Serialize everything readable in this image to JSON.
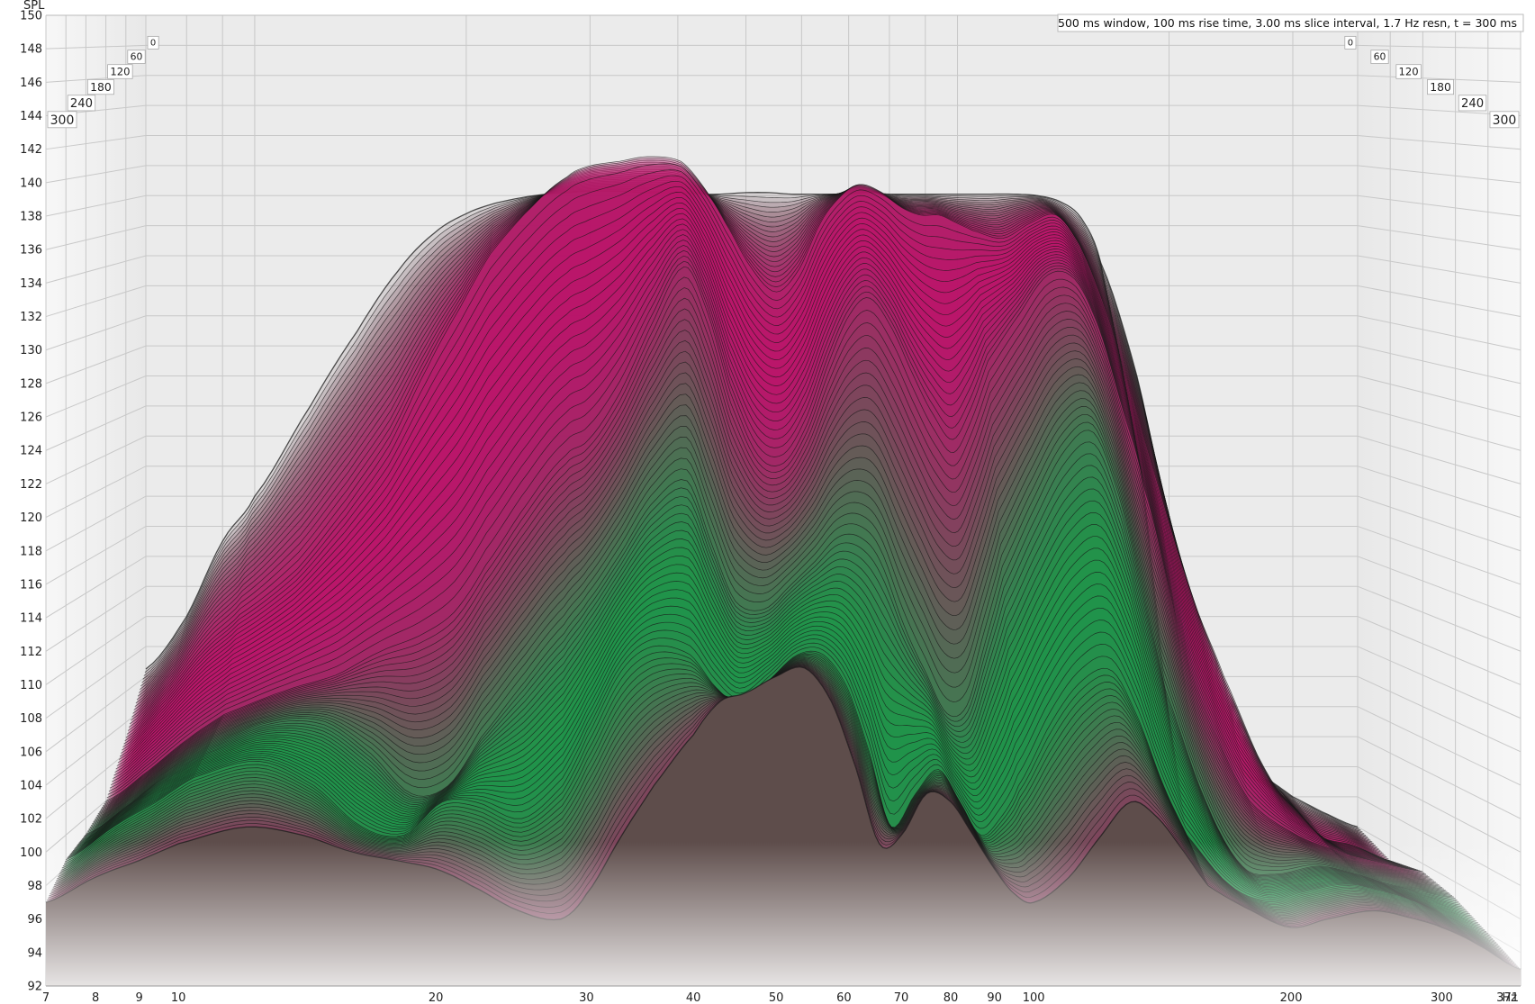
{
  "chart_data": {
    "type": "area",
    "subtype": "waterfall",
    "annotation": "500 ms window, 100 ms rise time, 3.00 ms slice interval, 1.7 Hz resn, t = 300 ms",
    "ylabel": "SPL",
    "xunit": "Hz",
    "ylim": [
      92,
      150
    ],
    "xlim": [
      7,
      371
    ],
    "x_scale": "log",
    "yticks": [
      92,
      94,
      96,
      98,
      100,
      102,
      104,
      106,
      108,
      110,
      112,
      114,
      116,
      118,
      120,
      122,
      124,
      126,
      128,
      130,
      132,
      134,
      136,
      138,
      140,
      142,
      144,
      146,
      148,
      150
    ],
    "xticks": [
      7,
      8,
      9,
      10,
      20,
      30,
      40,
      50,
      60,
      70,
      80,
      90,
      100,
      200,
      300,
      371
    ],
    "xtick_labels": [
      "7",
      "8",
      "9",
      "10",
      "20",
      "30",
      "40",
      "50",
      "60",
      "70",
      "80",
      "90",
      "100",
      "200",
      "300",
      "371"
    ],
    "time_ticks": [
      "0",
      "60",
      "120",
      "180",
      "240",
      "300"
    ],
    "colors": {
      "green": "#1e9a4c",
      "magenta": "#c0136c",
      "base": "#5e4d4b",
      "line": "#1a1a1a"
    },
    "grid": true,
    "series": [
      {
        "time_ms": 0,
        "x": [
          7,
          8,
          9,
          10,
          12,
          14,
          16,
          18,
          20,
          22,
          25,
          28,
          30,
          33,
          36,
          40,
          43,
          46,
          50,
          54,
          58,
          62,
          66,
          70,
          75,
          80,
          85,
          90,
          95,
          100,
          110,
          120,
          130,
          140,
          150,
          160,
          180,
          200,
          220,
          250,
          280,
          300,
          330,
          371
        ],
        "y": [
          106.5,
          110,
          115,
          118,
          124,
          129,
          133,
          135.5,
          136.8,
          137.5,
          138,
          138.2,
          138.3,
          138.3,
          138.2,
          138.2,
          138.1,
          138.1,
          138.2,
          138.2,
          138.1,
          138.1,
          138.1,
          138.1,
          138.2,
          138.1,
          138.1,
          138.1,
          138.1,
          138.1,
          138.1,
          138.1,
          138,
          137.6,
          136.5,
          133.5,
          126,
          116,
          106,
          100,
          99,
          98,
          97,
          96
        ]
      },
      {
        "time_ms": 60,
        "x": [
          7,
          8,
          9,
          10,
          12,
          14,
          16,
          18,
          20,
          22,
          25,
          28,
          30,
          33,
          36,
          40,
          43,
          46,
          50,
          54,
          58,
          62,
          66,
          70,
          75,
          80,
          85,
          90,
          95,
          100,
          110,
          120,
          130,
          140,
          150,
          160,
          180,
          200,
          220,
          250,
          280,
          300,
          330,
          371
        ],
        "y": [
          103,
          106,
          109,
          111,
          114,
          118,
          122,
          127,
          131,
          134.5,
          137.5,
          139.5,
          140.2,
          140.5,
          140.8,
          140.5,
          138.8,
          136.5,
          133.5,
          132,
          133.5,
          136.5,
          138.2,
          139,
          138.5,
          137.5,
          137,
          137,
          136.5,
          136,
          135.5,
          136.5,
          137,
          135,
          131.5,
          127,
          119,
          112,
          107,
          101,
          98,
          96.5,
          96,
          95
        ]
      },
      {
        "time_ms": 120,
        "x": [
          7,
          8,
          9,
          10,
          12,
          14,
          16,
          18,
          20,
          22,
          25,
          28,
          30,
          33,
          36,
          40,
          43,
          46,
          50,
          54,
          58,
          62,
          66,
          70,
          75,
          80,
          85,
          90,
          95,
          100,
          110,
          120,
          130,
          140,
          150,
          160,
          180,
          200,
          220,
          250,
          280,
          300,
          330,
          371
        ],
        "y": [
          100,
          102,
          104,
          105.5,
          107,
          108,
          109.5,
          110.5,
          112,
          115,
          119,
          122,
          123,
          126,
          130,
          134,
          131,
          126,
          122,
          121.5,
          124,
          128,
          131,
          132,
          130,
          127,
          124.5,
          123,
          125,
          128,
          131,
          133.5,
          133.2,
          130,
          125,
          120,
          110,
          104,
          100,
          98,
          97,
          96.5,
          96,
          95.5
        ]
      },
      {
        "time_ms": 180,
        "x": [
          7,
          8,
          9,
          10,
          12,
          14,
          16,
          18,
          20,
          22,
          25,
          28,
          30,
          33,
          36,
          40,
          43,
          46,
          50,
          54,
          58,
          62,
          66,
          70,
          75,
          80,
          85,
          90,
          95,
          100,
          110,
          120,
          130,
          140,
          150,
          160,
          180,
          200,
          220,
          250,
          280,
          300,
          330,
          371
        ],
        "y": [
          99,
          101,
          103,
          104.5,
          106,
          106,
          104,
          101.5,
          102,
          105,
          108.5,
          111.5,
          113.5,
          116.5,
          119.5,
          121,
          117,
          113.5,
          113,
          114.5,
          116,
          117.5,
          117.5,
          116,
          112,
          109,
          106.5,
          107,
          111,
          115,
          119.5,
          123,
          124,
          120,
          114,
          108,
          101,
          97,
          96.5,
          97,
          96.5,
          96,
          95.5,
          95
        ]
      },
      {
        "time_ms": 240,
        "x": [
          7,
          8,
          9,
          10,
          12,
          14,
          16,
          18,
          20,
          22,
          25,
          28,
          30,
          33,
          36,
          40,
          43,
          46,
          50,
          54,
          58,
          62,
          66,
          70,
          75,
          80,
          85,
          90,
          95,
          100,
          110,
          120,
          130,
          140,
          150,
          160,
          180,
          200,
          220,
          250,
          280,
          300,
          330,
          371
        ],
        "y": [
          98.5,
          100.5,
          102,
          103.5,
          104.5,
          103,
          100.5,
          100,
          102,
          102,
          101,
          103,
          106,
          110,
          111.5,
          111,
          109,
          108,
          109.5,
          111,
          111,
          109,
          105,
          100.5,
          102.5,
          104,
          102,
          100,
          101,
          103,
          107,
          109.5,
          110,
          107,
          103,
          100,
          97,
          96,
          96.5,
          97,
          96.5,
          96,
          95,
          94
        ]
      },
      {
        "time_ms": 300,
        "x": [
          7,
          8,
          9,
          10,
          12,
          14,
          16,
          18,
          20,
          22,
          25,
          28,
          30,
          33,
          36,
          40,
          43,
          46,
          50,
          54,
          58,
          62,
          66,
          70,
          75,
          80,
          85,
          90,
          95,
          100,
          110,
          120,
          130,
          140,
          150,
          160,
          180,
          200,
          220,
          250,
          280,
          300,
          330,
          371
        ],
        "y": [
          97,
          98.5,
          99.5,
          100.5,
          101.5,
          101,
          100,
          99.5,
          99,
          98,
          96.5,
          96,
          97.5,
          101,
          104,
          107,
          109,
          109.5,
          110.5,
          111,
          109,
          105,
          100.5,
          101,
          103.5,
          103,
          101,
          99,
          97.5,
          97,
          98.5,
          101,
          103,
          102,
          100,
          98,
          96.5,
          95.5,
          96,
          96.5,
          96,
          95.5,
          94.5,
          93
        ]
      }
    ]
  }
}
